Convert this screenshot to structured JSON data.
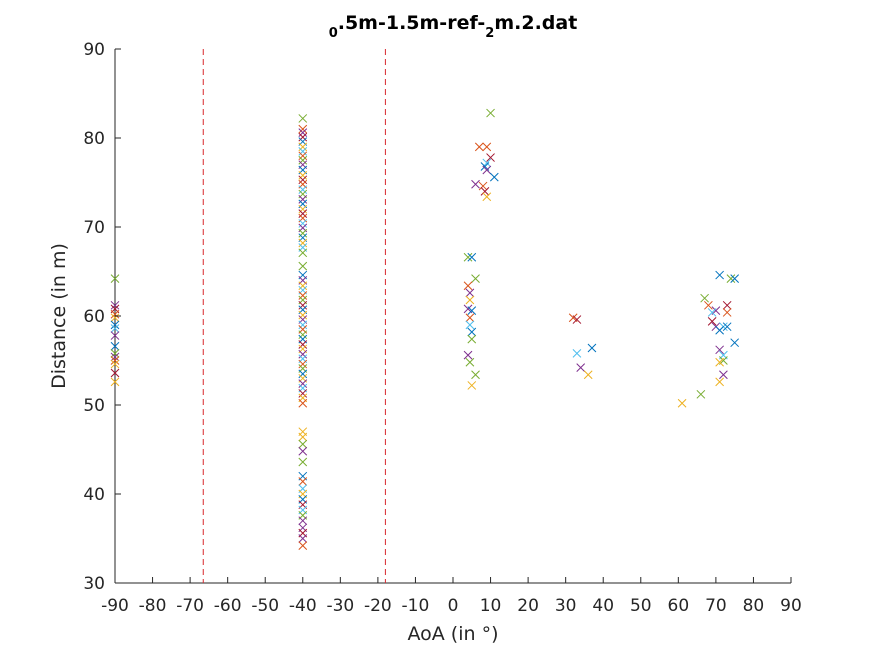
{
  "chart_data": {
    "type": "scatter",
    "title": "0.5m-1.5m-ref-2m.2.dat",
    "title_parts": [
      {
        "text": "0",
        "sub": true
      },
      {
        "text": ".5m-1.5m-ref-",
        "sub": false
      },
      {
        "text": "2",
        "sub": true
      },
      {
        "text": "m.2.dat",
        "sub": false
      }
    ],
    "xlabel": "AoA (in °)",
    "ylabel": "Distance (in m)",
    "xlim": [
      -90,
      90
    ],
    "ylim": [
      30,
      90
    ],
    "xticks": [
      -90,
      -80,
      -70,
      -60,
      -50,
      -40,
      -30,
      -20,
      -10,
      0,
      10,
      20,
      30,
      40,
      50,
      60,
      70,
      80,
      90
    ],
    "yticks": [
      30,
      40,
      50,
      60,
      70,
      80,
      90
    ],
    "grid": false,
    "marker": "x",
    "reference_lines": [
      {
        "x": -66.5,
        "color": "#d9272d",
        "style": "dashed"
      },
      {
        "x": -18,
        "color": "#d9272d",
        "style": "dashed"
      }
    ],
    "colors": [
      "#0072bd",
      "#d95319",
      "#edb120",
      "#7e2f8e",
      "#77ac30",
      "#4dbeee",
      "#a2142f"
    ],
    "points": [
      {
        "x": -90,
        "y": 64.2,
        "c": 4
      },
      {
        "x": -90,
        "y": 61.2,
        "c": 3
      },
      {
        "x": -90,
        "y": 60.8,
        "c": 6
      },
      {
        "x": -90,
        "y": 60.2,
        "c": 1
      },
      {
        "x": -90,
        "y": 59.8,
        "c": 2
      },
      {
        "x": -90,
        "y": 59.0,
        "c": 0
      },
      {
        "x": -90,
        "y": 58.6,
        "c": 5
      },
      {
        "x": -90,
        "y": 57.8,
        "c": 3
      },
      {
        "x": -90,
        "y": 56.6,
        "c": 0
      },
      {
        "x": -90,
        "y": 55.8,
        "c": 4
      },
      {
        "x": -90,
        "y": 55.4,
        "c": 3
      },
      {
        "x": -90,
        "y": 55.0,
        "c": 1
      },
      {
        "x": -90,
        "y": 54.6,
        "c": 2
      },
      {
        "x": -90,
        "y": 53.6,
        "c": 6
      },
      {
        "x": -90,
        "y": 52.6,
        "c": 2
      },
      {
        "x": -40,
        "y": 82.2,
        "c": 4
      },
      {
        "x": -40,
        "y": 81.0,
        "c": 1
      },
      {
        "x": -40,
        "y": 80.6,
        "c": 3
      },
      {
        "x": -40,
        "y": 80.1,
        "c": 6
      },
      {
        "x": -40,
        "y": 79.6,
        "c": 0
      },
      {
        "x": -40,
        "y": 79.0,
        "c": 2
      },
      {
        "x": -40,
        "y": 78.5,
        "c": 5
      },
      {
        "x": -40,
        "y": 78.0,
        "c": 1
      },
      {
        "x": -40,
        "y": 77.5,
        "c": 4
      },
      {
        "x": -40,
        "y": 77.0,
        "c": 3
      },
      {
        "x": -40,
        "y": 76.4,
        "c": 0
      },
      {
        "x": -40,
        "y": 75.8,
        "c": 2
      },
      {
        "x": -40,
        "y": 75.3,
        "c": 6
      },
      {
        "x": -40,
        "y": 74.8,
        "c": 1
      },
      {
        "x": -40,
        "y": 74.2,
        "c": 5
      },
      {
        "x": -40,
        "y": 73.7,
        "c": 4
      },
      {
        "x": -40,
        "y": 73.1,
        "c": 3
      },
      {
        "x": -40,
        "y": 72.6,
        "c": 0
      },
      {
        "x": -40,
        "y": 72.0,
        "c": 2
      },
      {
        "x": -40,
        "y": 71.5,
        "c": 6
      },
      {
        "x": -40,
        "y": 71.0,
        "c": 1
      },
      {
        "x": -40,
        "y": 70.4,
        "c": 5
      },
      {
        "x": -40,
        "y": 69.9,
        "c": 3
      },
      {
        "x": -40,
        "y": 69.3,
        "c": 4
      },
      {
        "x": -40,
        "y": 68.8,
        "c": 0
      },
      {
        "x": -40,
        "y": 68.2,
        "c": 2
      },
      {
        "x": -40,
        "y": 67.7,
        "c": 5
      },
      {
        "x": -40,
        "y": 67.1,
        "c": 4
      },
      {
        "x": -40,
        "y": 65.6,
        "c": 4
      },
      {
        "x": -40,
        "y": 64.6,
        "c": 0
      },
      {
        "x": -40,
        "y": 64.0,
        "c": 3
      },
      {
        "x": -40,
        "y": 63.4,
        "c": 2
      },
      {
        "x": -40,
        "y": 62.9,
        "c": 5
      },
      {
        "x": -40,
        "y": 62.3,
        "c": 1
      },
      {
        "x": -40,
        "y": 61.8,
        "c": 4
      },
      {
        "x": -40,
        "y": 61.2,
        "c": 6
      },
      {
        "x": -40,
        "y": 60.7,
        "c": 0
      },
      {
        "x": -40,
        "y": 60.1,
        "c": 2
      },
      {
        "x": -40,
        "y": 59.6,
        "c": 3
      },
      {
        "x": -40,
        "y": 59.0,
        "c": 5
      },
      {
        "x": -40,
        "y": 58.5,
        "c": 1
      },
      {
        "x": -40,
        "y": 57.9,
        "c": 4
      },
      {
        "x": -40,
        "y": 57.4,
        "c": 0
      },
      {
        "x": -40,
        "y": 56.8,
        "c": 6
      },
      {
        "x": -40,
        "y": 56.3,
        "c": 2
      },
      {
        "x": -40,
        "y": 55.7,
        "c": 3
      },
      {
        "x": -40,
        "y": 55.2,
        "c": 5
      },
      {
        "x": -40,
        "y": 54.6,
        "c": 1
      },
      {
        "x": -40,
        "y": 54.1,
        "c": 4
      },
      {
        "x": -40,
        "y": 53.5,
        "c": 0
      },
      {
        "x": -40,
        "y": 53.0,
        "c": 2
      },
      {
        "x": -40,
        "y": 52.4,
        "c": 3
      },
      {
        "x": -40,
        "y": 51.9,
        "c": 5
      },
      {
        "x": -40,
        "y": 51.3,
        "c": 6
      },
      {
        "x": -40,
        "y": 50.8,
        "c": 2
      },
      {
        "x": -40,
        "y": 50.2,
        "c": 1
      },
      {
        "x": -40,
        "y": 47.0,
        "c": 2
      },
      {
        "x": -40,
        "y": 46.4,
        "c": 2
      },
      {
        "x": -40,
        "y": 45.6,
        "c": 4
      },
      {
        "x": -40,
        "y": 44.8,
        "c": 3
      },
      {
        "x": -40,
        "y": 43.6,
        "c": 4
      },
      {
        "x": -40,
        "y": 42.0,
        "c": 0
      },
      {
        "x": -40,
        "y": 41.4,
        "c": 1
      },
      {
        "x": -40,
        "y": 40.6,
        "c": 5
      },
      {
        "x": -40,
        "y": 40.0,
        "c": 2
      },
      {
        "x": -40,
        "y": 39.4,
        "c": 0
      },
      {
        "x": -40,
        "y": 38.8,
        "c": 6
      },
      {
        "x": -40,
        "y": 38.2,
        "c": 5
      },
      {
        "x": -40,
        "y": 37.6,
        "c": 4
      },
      {
        "x": -40,
        "y": 37.0,
        "c": 3
      },
      {
        "x": -40,
        "y": 36.2,
        "c": 3
      },
      {
        "x": -40,
        "y": 35.6,
        "c": 6
      },
      {
        "x": -40,
        "y": 35.0,
        "c": 3
      },
      {
        "x": -40,
        "y": 34.2,
        "c": 1
      },
      {
        "x": 10,
        "y": 82.8,
        "c": 4
      },
      {
        "x": 7,
        "y": 79.0,
        "c": 1
      },
      {
        "x": 9,
        "y": 79.0,
        "c": 1
      },
      {
        "x": 10,
        "y": 77.8,
        "c": 6
      },
      {
        "x": 9,
        "y": 77.2,
        "c": 5
      },
      {
        "x": 8.5,
        "y": 76.8,
        "c": 0
      },
      {
        "x": 9,
        "y": 76.4,
        "c": 3
      },
      {
        "x": 11,
        "y": 75.6,
        "c": 0
      },
      {
        "x": 6,
        "y": 74.8,
        "c": 3
      },
      {
        "x": 8,
        "y": 74.6,
        "c": 1
      },
      {
        "x": 8.5,
        "y": 74.0,
        "c": 6
      },
      {
        "x": 9,
        "y": 73.4,
        "c": 2
      },
      {
        "x": 4,
        "y": 66.6,
        "c": 4
      },
      {
        "x": 5,
        "y": 66.6,
        "c": 0
      },
      {
        "x": 6,
        "y": 64.2,
        "c": 4
      },
      {
        "x": 4,
        "y": 63.4,
        "c": 1
      },
      {
        "x": 4.5,
        "y": 62.6,
        "c": 3
      },
      {
        "x": 4.5,
        "y": 61.8,
        "c": 2
      },
      {
        "x": 4,
        "y": 60.8,
        "c": 3
      },
      {
        "x": 5,
        "y": 60.6,
        "c": 0
      },
      {
        "x": 4.5,
        "y": 59.8,
        "c": 1
      },
      {
        "x": 4.5,
        "y": 59.0,
        "c": 5
      },
      {
        "x": 5,
        "y": 58.2,
        "c": 0
      },
      {
        "x": 5,
        "y": 57.4,
        "c": 4
      },
      {
        "x": 4,
        "y": 55.6,
        "c": 3
      },
      {
        "x": 4.5,
        "y": 54.8,
        "c": 4
      },
      {
        "x": 6,
        "y": 53.4,
        "c": 4
      },
      {
        "x": 5,
        "y": 52.2,
        "c": 2
      },
      {
        "x": 32,
        "y": 59.8,
        "c": 1
      },
      {
        "x": 33,
        "y": 59.6,
        "c": 6
      },
      {
        "x": 37,
        "y": 56.4,
        "c": 0
      },
      {
        "x": 33,
        "y": 55.8,
        "c": 5
      },
      {
        "x": 34,
        "y": 54.2,
        "c": 3
      },
      {
        "x": 36,
        "y": 53.4,
        "c": 2
      },
      {
        "x": 71,
        "y": 64.6,
        "c": 0
      },
      {
        "x": 74,
        "y": 64.2,
        "c": 4
      },
      {
        "x": 75,
        "y": 64.2,
        "c": 0
      },
      {
        "x": 67,
        "y": 62.0,
        "c": 4
      },
      {
        "x": 68,
        "y": 61.2,
        "c": 1
      },
      {
        "x": 73,
        "y": 61.2,
        "c": 6
      },
      {
        "x": 70,
        "y": 60.6,
        "c": 3
      },
      {
        "x": 69,
        "y": 60.4,
        "c": 5
      },
      {
        "x": 73,
        "y": 60.4,
        "c": 1
      },
      {
        "x": 69,
        "y": 59.4,
        "c": 6
      },
      {
        "x": 70,
        "y": 58.8,
        "c": 3
      },
      {
        "x": 72,
        "y": 58.8,
        "c": 5
      },
      {
        "x": 73,
        "y": 58.8,
        "c": 0
      },
      {
        "x": 71,
        "y": 58.4,
        "c": 0
      },
      {
        "x": 75,
        "y": 57.0,
        "c": 0
      },
      {
        "x": 71,
        "y": 56.2,
        "c": 3
      },
      {
        "x": 72,
        "y": 55.6,
        "c": 5
      },
      {
        "x": 72,
        "y": 55.0,
        "c": 4
      },
      {
        "x": 71,
        "y": 54.8,
        "c": 2
      },
      {
        "x": 72,
        "y": 53.4,
        "c": 3
      },
      {
        "x": 71,
        "y": 52.6,
        "c": 2
      },
      {
        "x": 66,
        "y": 51.2,
        "c": 4
      },
      {
        "x": 61,
        "y": 50.2,
        "c": 2
      }
    ]
  }
}
